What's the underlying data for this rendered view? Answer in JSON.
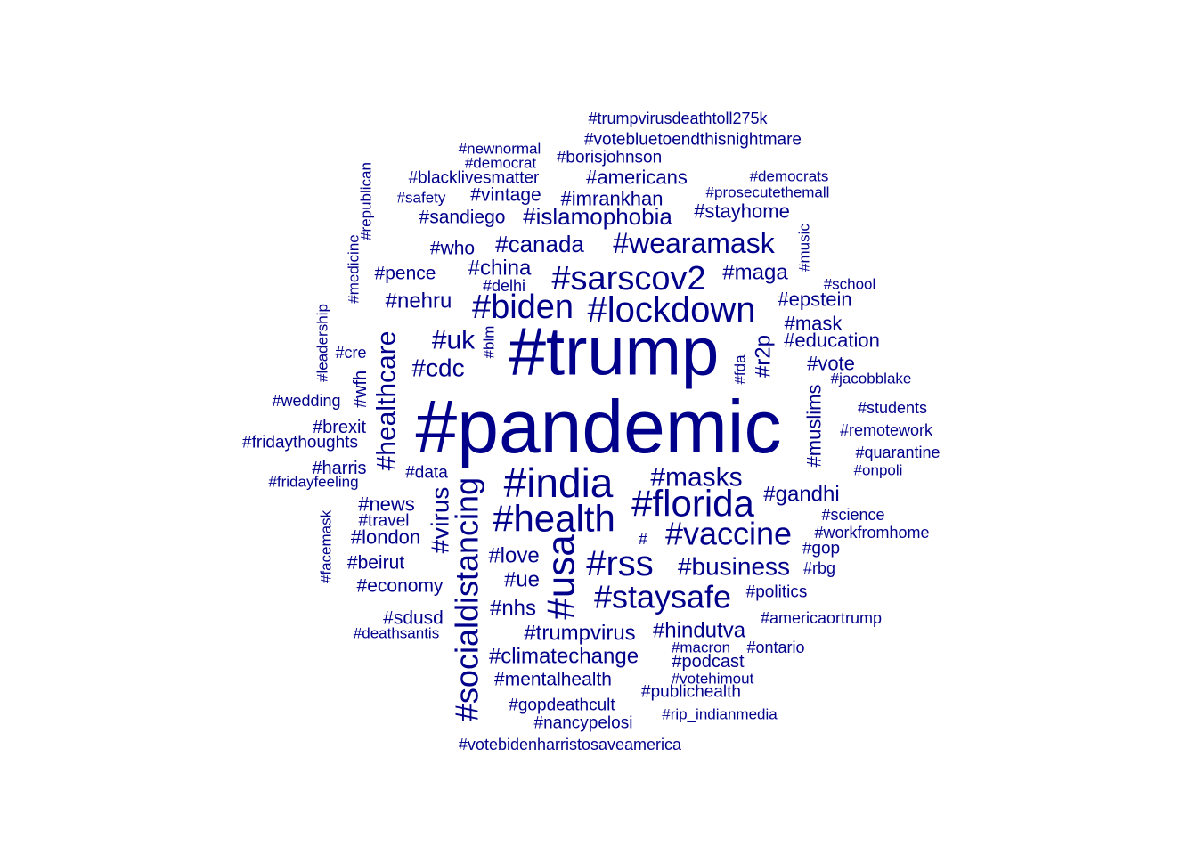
{
  "word_cloud": {
    "color": "#00008B",
    "words": [
      "#pandemic",
      "#trump",
      "#lockdown",
      "#biden",
      "#sarscov2",
      "#india",
      "#health",
      "#florida",
      "#usa",
      "#rss",
      "#socialdistancing",
      "#staysafe",
      "#vaccine",
      "#healthcare",
      "#wearamask",
      "#masks",
      "#virus",
      "#business",
      "#uk",
      "#cdc",
      "#islamophobia",
      "#canada",
      "#china",
      "#maga",
      "#nehru",
      "#love",
      "#nhs",
      "#ue",
      "#trumpvirus",
      "#hindutva",
      "#climatechange",
      "#gandhi",
      "#muslims",
      "#americans",
      "#imrankhan",
      "#stayhome",
      "#epstein",
      "#education",
      "#mask",
      "#news",
      "#london",
      "#mentalhealth",
      "#r2p",
      "#vote",
      "#sandiego",
      "#vintage",
      "#blacklivesmatter",
      "#borisjohnson",
      "#votebluetoendthisnightmare",
      "#trumpvirusdeathtoll275k",
      "#pence",
      "#who",
      "#beirut",
      "#economy",
      "#brexit",
      "#harris",
      "#sdusd",
      "#gopdeathcult",
      "#nancypelosi",
      "#podcast",
      "#publichealth",
      "#politics",
      "#gop",
      "#students",
      "#remotework",
      "#quarantine",
      "#workfromhome",
      "#science",
      "#americaortrump",
      "#fridaythoughts",
      "#wedding",
      "#travel",
      "#data",
      "#votebidenharristosaveamerica",
      "#prosecutethemall",
      "#democrats",
      "#newnormal",
      "#democrat",
      "#delhi",
      "#school",
      "#jacobblake",
      "#onpoli",
      "#ontario",
      "#macron",
      "#fridayfeeling",
      "#deathsantis",
      "#votehimout",
      "#rip_indianmedia",
      "#rbg",
      "#safety",
      "#cre",
      "#wfh",
      "#blm",
      "#fda",
      "#republican",
      "#medicine",
      "#leadership",
      "#facemask",
      "#music",
      "#"
    ]
  }
}
